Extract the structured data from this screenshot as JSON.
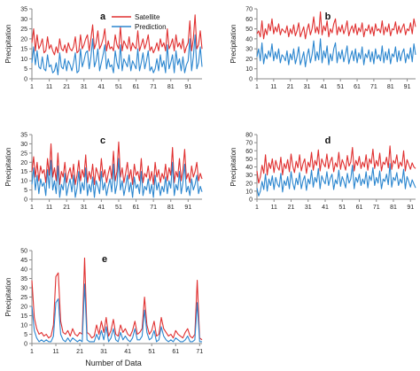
{
  "colors": {
    "satellite": "#e03030",
    "prediction": "#2b86cf",
    "axis": "#8a8a8a"
  },
  "legend": {
    "satellite": "Satellite",
    "prediction": "Prediction"
  },
  "x_axis_label": "Number of Data",
  "chart_data": [
    {
      "type": "line",
      "letter": "a",
      "ylabel": "Precipitation",
      "ylim": [
        0,
        35
      ],
      "yticks": [
        0,
        5,
        10,
        15,
        20,
        25,
        30,
        35
      ],
      "xlim": [
        1,
        99
      ],
      "xticks": [
        1,
        11,
        21,
        31,
        41,
        51,
        61,
        71,
        81,
        91
      ],
      "series": [
        {
          "name": "Satellite",
          "values": [
            18,
            25,
            14,
            22,
            15,
            17,
            20,
            13,
            14,
            21,
            15,
            17,
            14,
            12,
            16,
            13,
            20,
            15,
            14,
            17,
            13,
            18,
            15,
            14,
            16,
            21,
            13,
            14,
            22,
            15,
            17,
            20,
            22,
            14,
            20,
            27,
            15,
            18,
            24,
            15,
            17,
            20,
            25,
            14,
            19,
            15,
            16,
            14,
            22,
            17,
            15,
            26,
            14,
            19,
            17,
            15,
            21,
            14,
            18,
            16,
            15,
            24,
            14,
            17,
            20,
            15,
            18,
            22,
            14,
            16,
            13,
            15,
            18,
            14,
            20,
            16,
            18,
            14,
            25,
            15,
            17,
            20,
            14,
            22,
            16,
            18,
            15,
            20,
            13,
            16,
            18,
            29,
            14,
            20,
            32,
            15,
            17,
            24,
            15
          ]
        },
        {
          "name": "Prediction",
          "values": [
            8,
            16,
            7,
            14,
            6,
            5,
            11,
            5,
            4,
            12,
            6,
            7,
            3,
            4,
            8,
            2,
            13,
            6,
            5,
            10,
            4,
            9,
            7,
            4,
            8,
            13,
            3,
            4,
            15,
            6,
            9,
            13,
            14,
            5,
            11,
            20,
            6,
            9,
            15,
            4,
            8,
            12,
            17,
            5,
            10,
            6,
            7,
            3,
            14,
            8,
            5,
            17,
            4,
            10,
            8,
            6,
            12,
            4,
            9,
            7,
            5,
            15,
            4,
            8,
            13,
            5,
            9,
            14,
            4,
            6,
            3,
            5,
            10,
            4,
            12,
            6,
            9,
            3,
            17,
            5,
            8,
            12,
            3,
            14,
            7,
            10,
            4,
            11,
            3,
            7,
            9,
            20,
            4,
            11,
            22,
            5,
            8,
            16,
            6
          ]
        }
      ]
    },
    {
      "type": "line",
      "letter": "b",
      "ylabel": "Precipitation",
      "ylim": [
        0,
        70
      ],
      "yticks": [
        0,
        10,
        20,
        30,
        40,
        50,
        60,
        70
      ],
      "xlim": [
        1,
        96
      ],
      "xticks": [
        1,
        11,
        21,
        31,
        41,
        51,
        61,
        71,
        81,
        91
      ],
      "series": [
        {
          "name": "Satellite",
          "values": [
            45,
            48,
            42,
            58,
            40,
            50,
            44,
            55,
            48,
            60,
            45,
            52,
            47,
            55,
            44,
            50,
            48,
            46,
            53,
            42,
            50,
            45,
            54,
            43,
            48,
            56,
            42,
            47,
            52,
            40,
            49,
            55,
            44,
            50,
            62,
            46,
            52,
            45,
            67,
            44,
            53,
            48,
            58,
            42,
            50,
            46,
            55,
            60,
            44,
            52,
            47,
            54,
            45,
            50,
            58,
            43,
            49,
            53,
            46,
            55,
            44,
            51,
            47,
            56,
            42,
            50,
            48,
            54,
            45,
            52,
            43,
            55,
            48,
            50,
            46,
            58,
            44,
            52,
            47,
            55,
            43,
            50,
            49,
            57,
            45,
            53,
            46,
            51,
            55,
            44,
            50,
            48,
            56,
            45,
            60,
            52
          ]
        },
        {
          "name": "Prediction",
          "values": [
            22,
            30,
            18,
            36,
            15,
            25,
            20,
            28,
            22,
            35,
            18,
            27,
            20,
            30,
            16,
            24,
            22,
            18,
            28,
            14,
            25,
            19,
            30,
            15,
            22,
            32,
            14,
            20,
            27,
            12,
            23,
            30,
            16,
            24,
            38,
            18,
            27,
            19,
            40,
            16,
            28,
            21,
            33,
            14,
            25,
            18,
            30,
            36,
            16,
            27,
            20,
            29,
            17,
            24,
            33,
            15,
            22,
            28,
            18,
            30,
            16,
            26,
            20,
            32,
            14,
            25,
            21,
            29,
            17,
            27,
            15,
            30,
            20,
            24,
            18,
            33,
            16,
            27,
            19,
            30,
            15,
            25,
            22,
            32,
            17,
            28,
            18,
            26,
            30,
            16,
            25,
            20,
            31,
            17,
            35,
            24
          ]
        }
      ]
    },
    {
      "type": "line",
      "letter": "c",
      "ylabel": "Precipitation",
      "ylim": [
        0,
        35
      ],
      "yticks": [
        0,
        5,
        10,
        15,
        20,
        25,
        30,
        35
      ],
      "xlim": [
        1,
        99
      ],
      "xticks": [
        1,
        11,
        21,
        31,
        41,
        51,
        61,
        71,
        81,
        91
      ],
      "series": [
        {
          "name": "Satellite",
          "values": [
            15,
            23,
            12,
            20,
            10,
            18,
            14,
            16,
            9,
            22,
            13,
            30,
            12,
            17,
            10,
            25,
            8,
            15,
            12,
            20,
            9,
            14,
            17,
            11,
            19,
            8,
            13,
            21,
            10,
            16,
            12,
            24,
            9,
            15,
            11,
            19,
            8,
            17,
            14,
            10,
            22,
            12,
            16,
            9,
            14,
            18,
            11,
            26,
            10,
            15,
            31,
            12,
            17,
            9,
            14,
            20,
            11,
            16,
            8,
            19,
            13,
            15,
            10,
            22,
            9,
            14,
            12,
            18,
            10,
            15,
            8,
            20,
            12,
            16,
            9,
            14,
            11,
            19,
            10,
            17,
            13,
            28,
            9,
            15,
            12,
            22,
            10,
            16,
            27,
            11,
            14,
            9,
            18,
            12,
            15,
            20,
            10,
            14,
            11
          ]
        },
        {
          "name": "Prediction",
          "values": [
            8,
            17,
            5,
            13,
            3,
            11,
            7,
            9,
            2,
            16,
            6,
            21,
            5,
            10,
            3,
            18,
            1,
            8,
            5,
            14,
            2,
            7,
            11,
            4,
            13,
            1,
            6,
            15,
            3,
            9,
            5,
            17,
            2,
            8,
            4,
            12,
            1,
            10,
            7,
            3,
            15,
            5,
            9,
            2,
            7,
            11,
            4,
            19,
            3,
            8,
            22,
            5,
            10,
            2,
            7,
            13,
            4,
            9,
            1,
            12,
            6,
            8,
            3,
            15,
            2,
            7,
            5,
            11,
            3,
            8,
            1,
            13,
            5,
            9,
            2,
            7,
            4,
            12,
            3,
            10,
            6,
            20,
            2,
            8,
            5,
            15,
            3,
            9,
            19,
            4,
            7,
            2,
            11,
            5,
            8,
            13,
            3,
            7,
            4
          ]
        }
      ]
    },
    {
      "type": "line",
      "letter": "d",
      "ylabel": "Precipitation",
      "ylim": [
        0,
        80
      ],
      "yticks": [
        0,
        10,
        20,
        30,
        40,
        50,
        60,
        70,
        80
      ],
      "xlim": [
        1,
        94
      ],
      "xticks": [
        1,
        11,
        21,
        31,
        41,
        51,
        61,
        71,
        81,
        91
      ],
      "series": [
        {
          "name": "Satellite",
          "values": [
            35,
            20,
            28,
            42,
            32,
            55,
            30,
            45,
            38,
            50,
            33,
            48,
            40,
            36,
            52,
            30,
            44,
            38,
            49,
            34,
            56,
            41,
            33,
            47,
            39,
            55,
            35,
            44,
            50,
            32,
            46,
            40,
            58,
            36,
            48,
            42,
            61,
            35,
            50,
            44,
            40,
            56,
            38,
            47,
            52,
            34,
            45,
            40,
            58,
            37,
            49,
            43,
            36,
            54,
            41,
            46,
            64,
            35,
            48,
            42,
            53,
            38,
            46,
            40,
            55,
            36,
            50,
            44,
            62,
            38,
            48,
            41,
            57,
            35,
            46,
            43,
            52,
            39,
            66,
            37,
            48,
            44,
            55,
            38,
            46,
            41,
            60,
            35,
            49,
            43,
            37,
            45,
            40,
            38
          ]
        },
        {
          "name": "Prediction",
          "values": [
            14,
            4,
            10,
            22,
            12,
            31,
            10,
            25,
            17,
            29,
            12,
            27,
            19,
            15,
            32,
            9,
            23,
            17,
            28,
            13,
            34,
            20,
            12,
            26,
            18,
            33,
            13,
            23,
            29,
            11,
            25,
            19,
            36,
            15,
            27,
            21,
            38,
            13,
            29,
            23,
            19,
            34,
            17,
            26,
            31,
            12,
            24,
            19,
            36,
            16,
            28,
            22,
            14,
            32,
            20,
            25,
            42,
            13,
            27,
            21,
            31,
            17,
            25,
            19,
            34,
            14,
            29,
            23,
            39,
            17,
            27,
            20,
            35,
            13,
            25,
            22,
            31,
            18,
            44,
            15,
            27,
            23,
            33,
            17,
            25,
            20,
            37,
            13,
            28,
            22,
            15,
            24,
            19,
            14
          ]
        }
      ]
    },
    {
      "type": "line",
      "letter": "e",
      "ylabel": "Precipitation",
      "ylim": [
        0,
        50
      ],
      "yticks": [
        0,
        5,
        10,
        15,
        20,
        25,
        30,
        35,
        40,
        45,
        50
      ],
      "xlim": [
        1,
        72
      ],
      "xticks": [
        1,
        11,
        21,
        31,
        41,
        51,
        61,
        71
      ],
      "series": [
        {
          "name": "Satellite",
          "values": [
            34,
            14,
            8,
            5,
            6,
            4,
            5,
            3,
            4,
            10,
            36,
            38,
            12,
            6,
            5,
            7,
            4,
            8,
            5,
            4,
            6,
            5,
            46,
            6,
            5,
            3,
            4,
            10,
            5,
            12,
            6,
            14,
            4,
            7,
            13,
            5,
            4,
            10,
            6,
            8,
            5,
            4,
            7,
            12,
            5,
            6,
            8,
            25,
            10,
            5,
            7,
            12,
            4,
            5,
            14,
            8,
            6,
            4,
            5,
            3,
            7,
            5,
            4,
            3,
            6,
            8,
            4,
            3,
            5,
            34,
            3,
            2
          ]
        },
        {
          "name": "Prediction",
          "values": [
            20,
            7,
            3,
            1,
            2,
            1,
            2,
            1,
            1,
            4,
            22,
            24,
            5,
            2,
            1,
            3,
            1,
            3,
            2,
            1,
            2,
            1,
            32,
            2,
            1,
            1,
            1,
            5,
            2,
            7,
            2,
            9,
            1,
            3,
            8,
            2,
            1,
            6,
            2,
            4,
            2,
            1,
            3,
            8,
            2,
            2,
            4,
            18,
            6,
            2,
            3,
            7,
            1,
            2,
            9,
            4,
            2,
            1,
            2,
            1,
            3,
            2,
            1,
            1,
            2,
            4,
            1,
            1,
            2,
            22,
            1,
            1
          ]
        }
      ]
    }
  ]
}
